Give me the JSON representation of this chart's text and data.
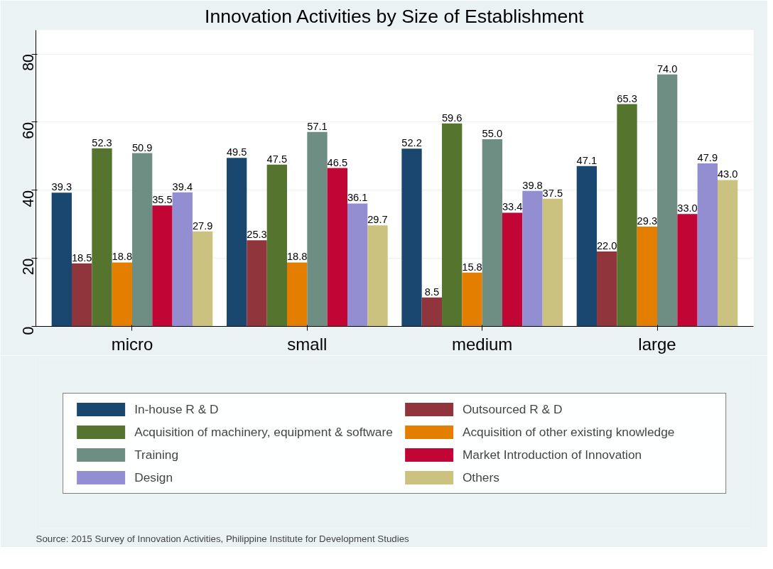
{
  "chart_data": {
    "type": "bar",
    "title": "Innovation Activities by Size of Establishment",
    "categories": [
      "micro",
      "small",
      "medium",
      "large"
    ],
    "series": [
      {
        "name": "In-house R & D",
        "color": "#1a476f",
        "values": [
          39.3,
          49.5,
          52.2,
          47.1
        ],
        "value_labels": [
          "39.3",
          "49.5",
          "52.2",
          "47.1"
        ]
      },
      {
        "name": "Outsourced R & D",
        "color": "#90353b",
        "values": [
          18.5,
          25.3,
          8.5,
          22.0
        ],
        "value_labels": [
          "18.5",
          "25.3",
          "8.5",
          "22.0"
        ]
      },
      {
        "name": "Acquisition of machinery, equipment & software",
        "color": "#55752f",
        "values": [
          52.3,
          47.5,
          59.6,
          65.3
        ],
        "value_labels": [
          "52.3",
          "47.5",
          "59.6",
          "65.3"
        ]
      },
      {
        "name": "Acquisition of other existing knowledge",
        "color": "#e37e00",
        "values": [
          18.8,
          18.8,
          15.8,
          29.3
        ],
        "value_labels": [
          "18.8",
          "18.8",
          "15.8",
          "29.3"
        ]
      },
      {
        "name": "Training",
        "color": "#6e8e84",
        "values": [
          50.9,
          57.1,
          55.0,
          74.0
        ],
        "value_labels": [
          "50.9",
          "57.1",
          "55.0",
          "74.0"
        ]
      },
      {
        "name": "Market Introduction of Innovation",
        "color": "#c10534",
        "values": [
          35.5,
          46.5,
          33.4,
          33.0
        ],
        "value_labels": [
          "35.5",
          "46.5",
          "33.4",
          "33.0"
        ]
      },
      {
        "name": "Design",
        "color": "#938dd2",
        "values": [
          39.4,
          36.1,
          39.8,
          47.9
        ],
        "value_labels": [
          "39.4",
          "36.1",
          "39.8",
          "47.9"
        ]
      },
      {
        "name": "Others",
        "color": "#cac27e",
        "values": [
          27.9,
          29.7,
          37.5,
          43.0
        ],
        "value_labels": [
          "27.9",
          "29.7",
          "37.5",
          "43.0"
        ]
      }
    ],
    "ylim": [
      0,
      87
    ],
    "yticks": [
      0,
      20,
      40,
      60,
      80
    ],
    "grid": "y",
    "legend": "bottom",
    "annotations": [
      "Source: 2015 Survey of Innovation Activities, Philippine Institute for Development Studies"
    ]
  }
}
